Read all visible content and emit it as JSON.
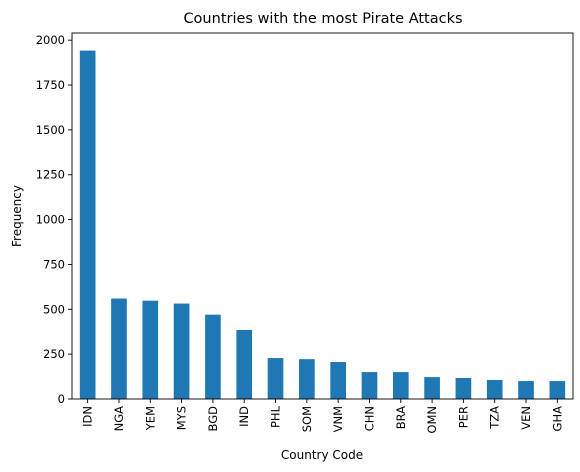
{
  "chart_data": {
    "type": "bar",
    "title": "Countries with the most Pirate Attacks",
    "xlabel": "Country Code",
    "ylabel": "Frequency",
    "categories": [
      "IDN",
      "NGA",
      "YEM",
      "MYS",
      "BGD",
      "IND",
      "PHL",
      "SOM",
      "VNM",
      "CHN",
      "BRA",
      "OMN",
      "PER",
      "TZA",
      "VEN",
      "GHA"
    ],
    "values": [
      1942,
      560,
      548,
      532,
      470,
      385,
      228,
      222,
      206,
      150,
      150,
      122,
      117,
      106,
      100,
      100
    ],
    "ylim": [
      0,
      2040
    ],
    "yticks": [
      0,
      250,
      500,
      750,
      1000,
      1250,
      1500,
      1750,
      2000
    ],
    "bar_color": "#1f77b4",
    "grid": false,
    "legend": "none"
  }
}
